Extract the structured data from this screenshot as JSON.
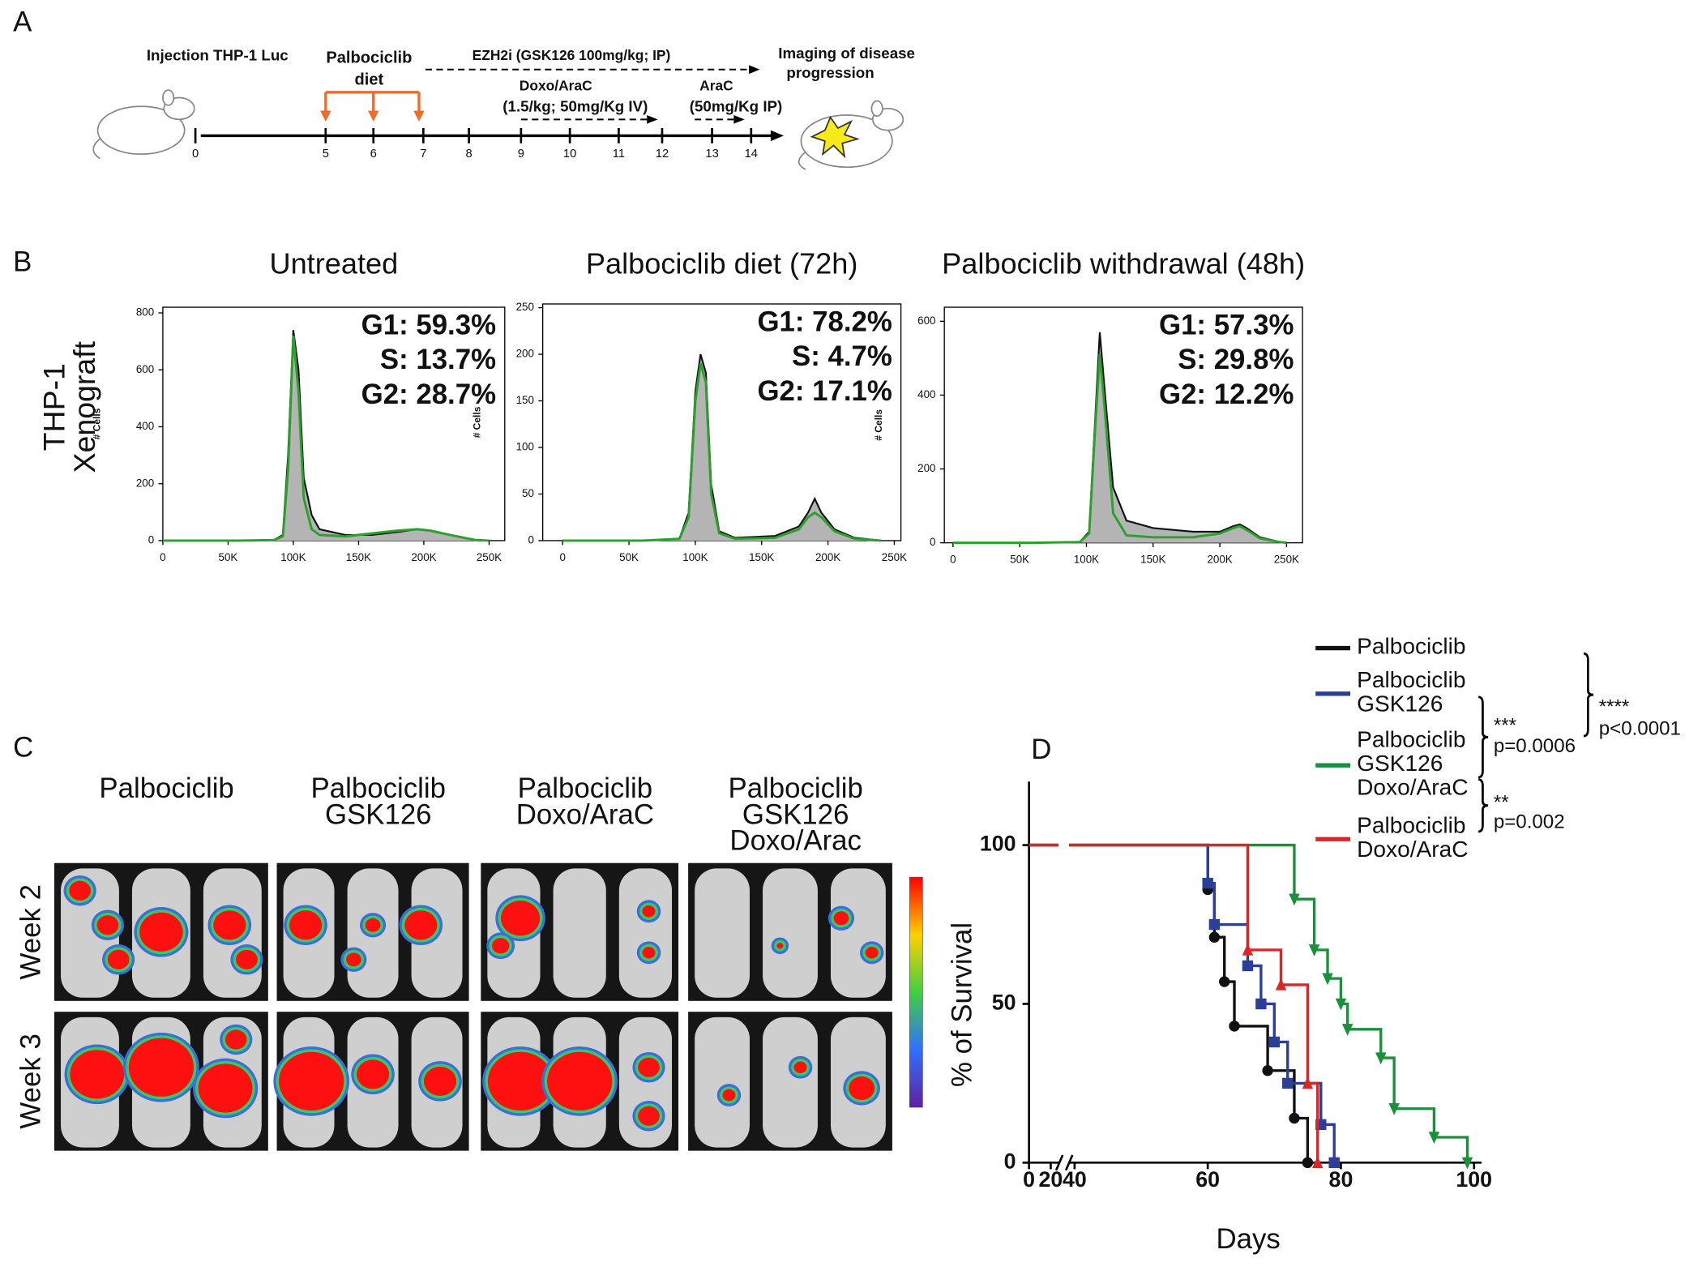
{
  "panel_labels": [
    "A",
    "B",
    "C",
    "D"
  ],
  "timeline": {
    "days": [
      0,
      5,
      6,
      7,
      8,
      9,
      10,
      11,
      12,
      13,
      14
    ],
    "injection": "Injection THP-1 Luc",
    "palbociclib_diet": [
      "Palbociclib",
      "diet"
    ],
    "ezh2i": "EZH2i (GSK126 100mg/kg; IP)",
    "imaging": [
      "Imaging of  disease",
      "progression"
    ],
    "doxo": [
      "Doxo/AraC",
      "(1.5/kg; 50mg/Kg IV)"
    ],
    "arac": [
      "AraC",
      "(50mg/Kg IP)"
    ]
  },
  "flow": {
    "row_label": [
      "THP-1",
      "Xenograft"
    ]
  },
  "imaging": {
    "groups": [
      [
        "Palbociclib"
      ],
      [
        "Palbociclib",
        "GSK126"
      ],
      [
        "Palbociclib",
        "Doxo/AraC"
      ],
      [
        "Palbociclib",
        "GSK126",
        "Doxo/Arac"
      ]
    ],
    "rows": [
      "Week 2",
      "Week 3"
    ]
  },
  "chart_data": [
    {
      "type": "histogram",
      "title": "Untreated",
      "ylabel": "# Cells",
      "annotations": [
        "G1: 59.3%",
        "S: 13.7%",
        "G2: 28.7%"
      ],
      "x": [
        0,
        60000,
        85000,
        92000,
        96000,
        100000,
        104000,
        108000,
        114000,
        120000,
        140000,
        160000,
        180000,
        195000,
        205000,
        220000,
        240000,
        250000
      ],
      "series": [
        {
          "color": "#111111",
          "fill": "#b4b4b4",
          "values": [
            0,
            0,
            2,
            20,
            300,
            740,
            600,
            220,
            90,
            40,
            20,
            20,
            30,
            40,
            35,
            20,
            2,
            0
          ]
        },
        {
          "color": "#2ca02c",
          "values": [
            0,
            0,
            2,
            15,
            250,
            720,
            520,
            150,
            40,
            20,
            15,
            25,
            35,
            40,
            35,
            20,
            2,
            0
          ]
        }
      ],
      "xlim": [
        0,
        262000
      ],
      "ylim": [
        0,
        820
      ],
      "xticks": [
        0,
        {
          "value": 50000,
          "label": "50K"
        },
        {
          "value": 100000,
          "label": "100K"
        },
        {
          "value": 150000,
          "label": "150K"
        },
        {
          "value": 200000,
          "label": "200K"
        },
        {
          "value": 250000,
          "label": "250K"
        }
      ],
      "yticks": [
        0,
        200,
        400,
        600,
        800
      ]
    },
    {
      "type": "histogram",
      "title": "Palbociclib diet (72h)",
      "ylabel": "# Cells",
      "annotations": [
        "G1: 78.2%",
        "S: 4.7%",
        "G2: 17.1%"
      ],
      "x": [
        0,
        60000,
        88000,
        95000,
        100000,
        104000,
        108000,
        112000,
        118000,
        130000,
        160000,
        178000,
        185000,
        190000,
        195000,
        205000,
        220000,
        240000
      ],
      "series": [
        {
          "color": "#111111",
          "fill": "#b4b4b4",
          "values": [
            0,
            0,
            2,
            30,
            160,
            200,
            180,
            60,
            10,
            3,
            5,
            15,
            30,
            45,
            30,
            12,
            3,
            0
          ]
        },
        {
          "color": "#2ca02c",
          "values": [
            0,
            0,
            2,
            25,
            150,
            190,
            170,
            50,
            8,
            2,
            3,
            12,
            25,
            30,
            25,
            10,
            2,
            0
          ]
        }
      ],
      "xlim": [
        -15000,
        255000
      ],
      "ylim": [
        0,
        254
      ],
      "xticks": [
        0,
        {
          "value": 50000,
          "label": "50K"
        },
        {
          "value": 100000,
          "label": "100K"
        },
        {
          "value": 150000,
          "label": "150K"
        },
        {
          "value": 200000,
          "label": "200K"
        },
        {
          "value": 250000,
          "label": "250K"
        }
      ],
      "yticks": [
        0,
        50,
        100,
        150,
        200,
        250
      ]
    },
    {
      "type": "histogram",
      "title": "Palbociclib withdrawal (48h)",
      "ylabel": "# Cells",
      "annotations": [
        "G1: 57.3%",
        "S: 29.8%",
        "G2: 12.2%"
      ],
      "x": [
        0,
        60000,
        95000,
        102000,
        106000,
        110000,
        114000,
        120000,
        130000,
        150000,
        180000,
        200000,
        210000,
        215000,
        220000,
        230000,
        245000,
        250000
      ],
      "series": [
        {
          "color": "#111111",
          "fill": "#b4b4b4",
          "values": [
            0,
            0,
            2,
            30,
            300,
            570,
            400,
            150,
            60,
            40,
            30,
            30,
            45,
            50,
            40,
            15,
            2,
            0
          ]
        },
        {
          "color": "#2ca02c",
          "values": [
            0,
            0,
            2,
            25,
            280,
            510,
            350,
            80,
            20,
            15,
            15,
            25,
            40,
            45,
            35,
            12,
            2,
            0
          ]
        }
      ],
      "xlim": [
        -6500,
        262000
      ],
      "ylim": [
        0,
        638
      ],
      "xticks": [
        0,
        {
          "value": 50000,
          "label": "50K"
        },
        {
          "value": 100000,
          "label": "100K"
        },
        {
          "value": 150000,
          "label": "150K"
        },
        {
          "value": 200000,
          "label": "200K"
        },
        {
          "value": 250000,
          "label": "250K"
        }
      ],
      "yticks": [
        0,
        200,
        400,
        600
      ]
    },
    {
      "type": "step",
      "ylabel": "% of Survival",
      "xlabel": "Days",
      "xlim": [
        0,
        100
      ],
      "ylim": [
        0,
        120
      ],
      "axis_break": [
        20,
        40
      ],
      "xticks": [
        0,
        20,
        40,
        60,
        80,
        100
      ],
      "yticks": [
        0,
        50,
        100
      ],
      "series": [
        {
          "name": "Palbociclib",
          "color": "#111111",
          "marker": "circle",
          "x": [
            0,
            60,
            61,
            62.5,
            64,
            69,
            73,
            75
          ],
          "values": [
            100,
            86,
            71,
            57,
            43,
            29,
            14,
            0
          ]
        },
        {
          "name": "Palbociclib GSK126",
          "color": "#2b3f98",
          "marker": "square",
          "x": [
            0,
            60,
            61,
            66,
            68,
            70,
            72,
            77,
            79
          ],
          "values": [
            100,
            88,
            75,
            62,
            50,
            38,
            25,
            12,
            0
          ]
        },
        {
          "name": "Palbociclib GSK126 Doxo/AraC",
          "color": "#1a8f3c",
          "marker": "triangle-down",
          "x": [
            0,
            73,
            76,
            78,
            80,
            81,
            86,
            88,
            94,
            99
          ],
          "values": [
            100,
            83,
            67,
            58,
            50,
            42,
            33,
            17,
            8,
            0
          ]
        },
        {
          "name": "Palbociclib Doxo/AraC",
          "color": "#e02424",
          "marker": "triangle",
          "x": [
            0,
            66,
            71,
            75,
            76.5
          ],
          "values": [
            100,
            67,
            56,
            25,
            0
          ]
        }
      ],
      "annotations": [
        "***",
        "p=0.0006",
        "****",
        "p<0.0001",
        "**",
        "p=0.002"
      ]
    }
  ]
}
